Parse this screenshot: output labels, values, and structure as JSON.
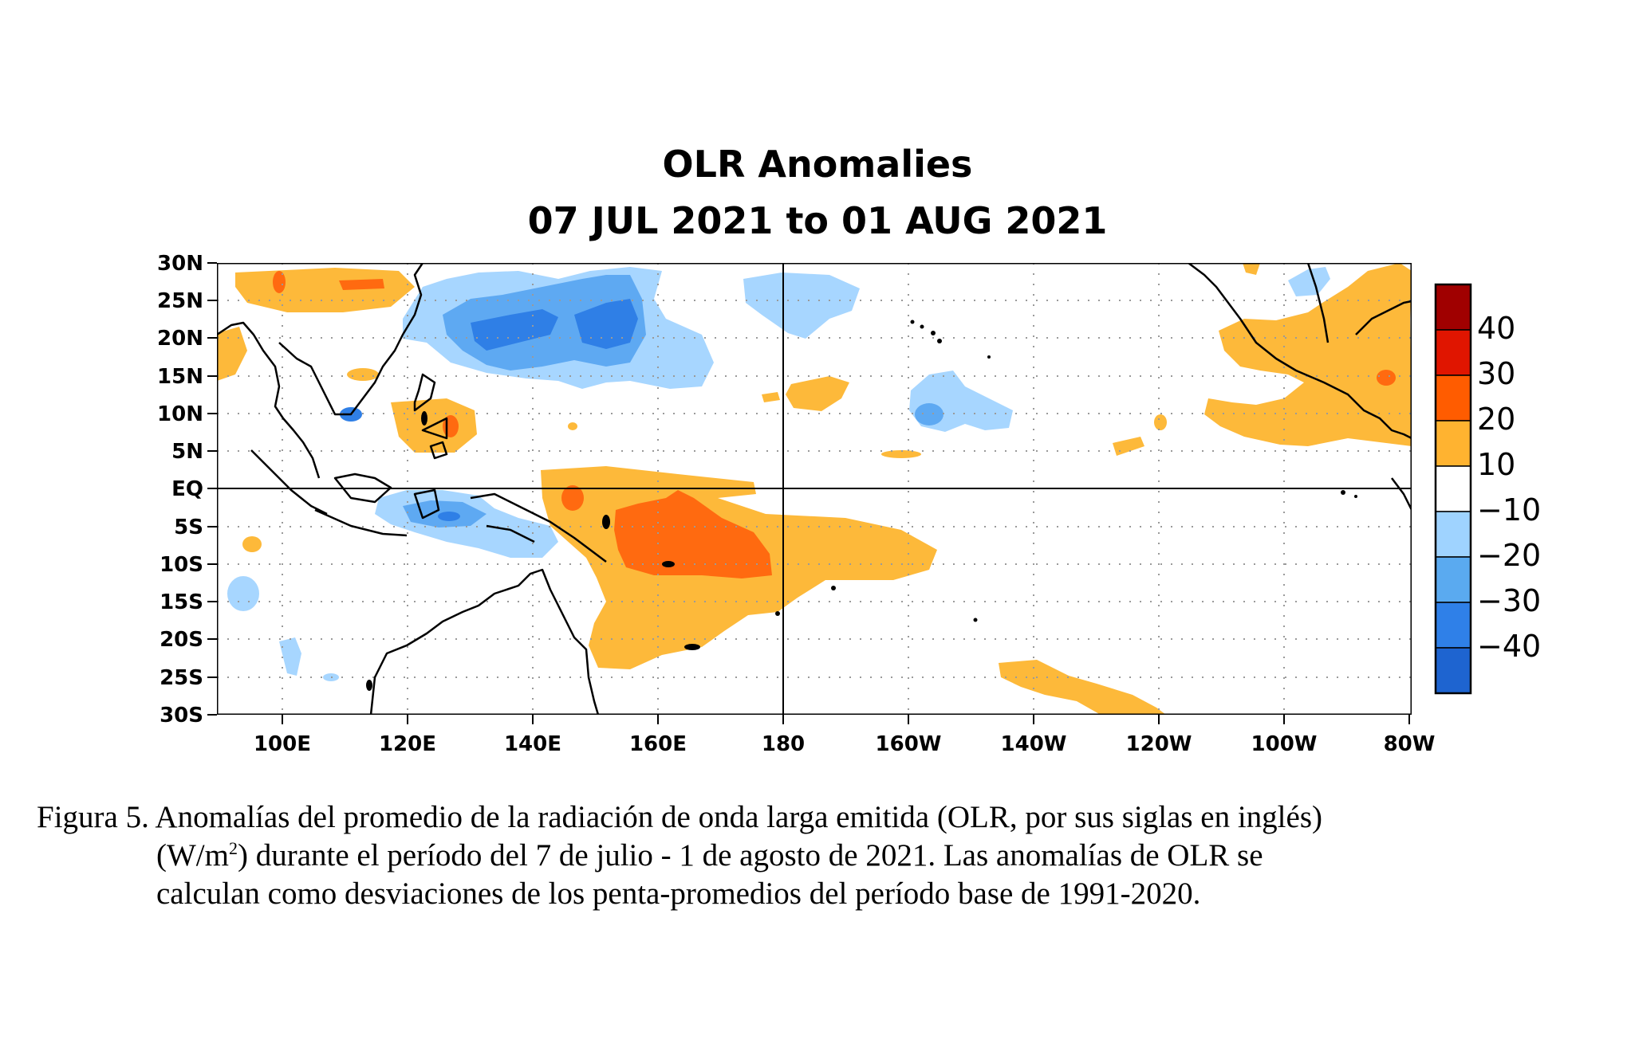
{
  "map": {
    "title_line1": "OLR Anomalies",
    "title_line2": "07 JUL 2021 to 01 AUG 2021",
    "lat_labels": [
      "30N",
      "25N",
      "20N",
      "15N",
      "10N",
      "5N",
      "EQ",
      "5S",
      "10S",
      "15S",
      "20S",
      "25S",
      "30S"
    ],
    "lon_labels": [
      "100E",
      "120E",
      "140E",
      "160E",
      "180",
      "160W",
      "140W",
      "120W",
      "100W",
      "80W"
    ],
    "colorbar": {
      "labels": [
        "40",
        "30",
        "20",
        "10",
        "−10",
        "−20",
        "−30",
        "−40"
      ],
      "colors": [
        "#a00000",
        "#e01500",
        "#ff5c00",
        "#ffb330",
        "#ffffff",
        "#9fd3ff",
        "#5aaaf0",
        "#2f80e8",
        "#1e64d0"
      ]
    },
    "colors": {
      "pos10": "#fdb93a",
      "pos20": "#ff6a10",
      "pos30": "#e02000",
      "neg10": "#a7d6ff",
      "neg20": "#5ea9f2",
      "neg30": "#2f7fe6"
    }
  },
  "caption": {
    "line1": "Figura 5. Anomalías del promedio de la radiación de onda larga emitida (OLR, por sus siglas en inglés)",
    "line2_a": "(W/m",
    "line2_sup": "2",
    "line2_b": ") durante el período del 7 de julio - 1 de agosto de 2021.  Las anomalías de OLR se",
    "line3": "calculan como desviaciones de los penta-promedios del período base de 1991-2020."
  }
}
